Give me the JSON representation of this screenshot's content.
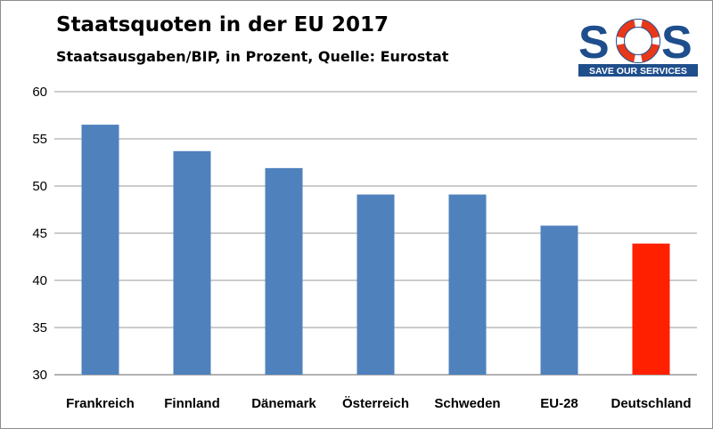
{
  "header": {
    "title": "Staatsquoten in der EU 2017",
    "subtitle": "Staatsausgaben/BIP, in Prozent, Quelle: Eurostat"
  },
  "logo": {
    "text": "SOS",
    "tagline": "SAVE OUR SERVICES",
    "color": "#1f4e8c",
    "ring_color": "#e8381a"
  },
  "chart_data": {
    "type": "bar",
    "title": "Staatsquoten in der EU 2017",
    "subtitle": "Staatsausgaben/BIP, in Prozent, Quelle: Eurostat",
    "xlabel": "",
    "ylabel": "",
    "categories": [
      "Frankreich",
      "Finnland",
      "Dänemark",
      "Österreich",
      "Schweden",
      "EU-28",
      "Deutschland"
    ],
    "values": [
      56.5,
      53.7,
      51.9,
      49.1,
      49.1,
      45.8,
      43.9
    ],
    "bar_colors": [
      "#4f81bd",
      "#4f81bd",
      "#4f81bd",
      "#4f81bd",
      "#4f81bd",
      "#4f81bd",
      "#ff2000"
    ],
    "ylim": [
      30,
      60
    ],
    "yticks": [
      30,
      35,
      40,
      45,
      50,
      55,
      60
    ],
    "grid": true,
    "legend": "none"
  }
}
